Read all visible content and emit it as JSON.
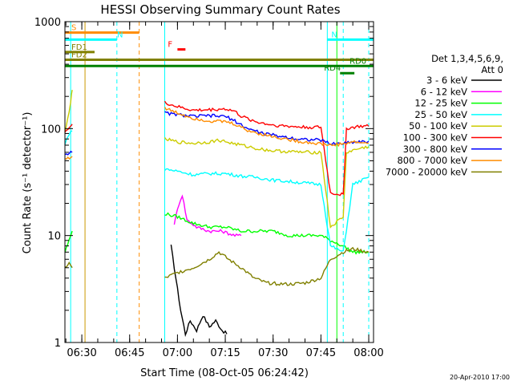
{
  "chart_data": {
    "type": "line",
    "title": "HESSI Observing Summary Count Rates",
    "xlabel": "Start Time (08-Oct-05 06:24:42)",
    "ylabel": "Count Rate (s⁻¹ detector⁻¹)",
    "yscale": "log",
    "ylim": [
      1,
      1000
    ],
    "xlim": [
      "06:24:42",
      "08:01:30"
    ],
    "x_ticks": [
      "06:30",
      "06:45",
      "07:00",
      "07:15",
      "07:30",
      "07:45",
      "08:00"
    ],
    "y_ticks": [
      "1",
      "10",
      "100",
      "1000"
    ],
    "legend_header": [
      "Det 1,3,4,5,6,9,",
      "Att 0"
    ],
    "grid": false,
    "legend_position": "right",
    "series": [
      {
        "name": "3 - 6 keV",
        "color": "#000000",
        "points": [
          [
            "06:58:00",
            8
          ],
          [
            "06:59:30",
            4
          ],
          [
            "07:01:00",
            2
          ],
          [
            "07:02:30",
            1.2
          ],
          [
            "07:04:00",
            1.6
          ],
          [
            "07:06:00",
            1.3
          ],
          [
            "07:08:00",
            1.8
          ],
          [
            "07:10:00",
            1.4
          ],
          [
            "07:12:00",
            1.6
          ],
          [
            "07:14:00",
            1.3
          ],
          [
            "07:15:30",
            1.2
          ]
        ]
      },
      {
        "name": "6 - 12 keV",
        "color": "#ff00ff",
        "points": [
          [
            "06:59:00",
            13
          ],
          [
            "07:00:30",
            20
          ],
          [
            "07:01:30",
            24
          ],
          [
            "07:03:00",
            14
          ],
          [
            "07:06:00",
            12
          ],
          [
            "07:10:00",
            11
          ],
          [
            "07:14:00",
            11
          ],
          [
            "07:18:00",
            10
          ],
          [
            "07:20:00",
            10
          ]
        ]
      },
      {
        "name": "12 - 25 keV",
        "color": "#00ff00",
        "points": [
          [
            "06:24:42",
            7
          ],
          [
            "06:26:00",
            9
          ],
          [
            "06:27:00",
            11
          ],
          [
            "06:56:00",
            16
          ],
          [
            "07:00:00",
            15
          ],
          [
            "07:05:00",
            13
          ],
          [
            "07:10:00",
            12
          ],
          [
            "07:15:00",
            12
          ],
          [
            "07:20:00",
            11
          ],
          [
            "07:25:00",
            11
          ],
          [
            "07:30:00",
            11
          ],
          [
            "07:35:00",
            10
          ],
          [
            "07:40:00",
            10
          ],
          [
            "07:45:00",
            10
          ],
          [
            "07:48:00",
            9
          ],
          [
            "07:52:00",
            8
          ],
          [
            "07:55:00",
            7
          ],
          [
            "07:57:00",
            7
          ],
          [
            "08:00:00",
            7
          ]
        ]
      },
      {
        "name": "25 - 50 keV",
        "color": "#00ffff",
        "points": [
          [
            "06:24:42",
            70
          ],
          [
            "06:25:30",
            85
          ],
          [
            "06:27:00",
            95
          ],
          [
            "06:56:00",
            42
          ],
          [
            "07:00:00",
            40
          ],
          [
            "07:05:00",
            37
          ],
          [
            "07:10:00",
            38
          ],
          [
            "07:15:00",
            38
          ],
          [
            "07:20:00",
            36
          ],
          [
            "07:25:00",
            35
          ],
          [
            "07:30:00",
            33
          ],
          [
            "07:35:00",
            32
          ],
          [
            "07:40:00",
            31
          ],
          [
            "07:45:00",
            30
          ],
          [
            "07:48:00",
            8
          ],
          [
            "07:52:00",
            7
          ],
          [
            "07:55:00",
            30
          ],
          [
            "07:58:00",
            33
          ],
          [
            "08:00:00",
            35
          ]
        ]
      },
      {
        "name": "50 - 100 keV",
        "color": "#cccc00",
        "points": [
          [
            "06:24:42",
            90
          ],
          [
            "06:25:30",
            120
          ],
          [
            "06:26:30",
            180
          ],
          [
            "06:27:00",
            230
          ],
          [
            "06:56:00",
            80
          ],
          [
            "07:00:00",
            75
          ],
          [
            "07:05:00",
            73
          ],
          [
            "07:10:00",
            75
          ],
          [
            "07:13:00",
            78
          ],
          [
            "07:18:00",
            72
          ],
          [
            "07:22:00",
            68
          ],
          [
            "07:25:00",
            65
          ],
          [
            "07:30:00",
            62
          ],
          [
            "07:35:00",
            61
          ],
          [
            "07:40:00",
            60
          ],
          [
            "07:45:00",
            60
          ],
          [
            "07:48:00",
            12
          ],
          [
            "07:52:00",
            15
          ],
          [
            "07:53:00",
            60
          ],
          [
            "07:57:00",
            65
          ],
          [
            "08:00:00",
            68
          ]
        ]
      },
      {
        "name": "100 - 300 keV",
        "color": "#ff0000",
        "points": [
          [
            "06:24:42",
            95
          ],
          [
            "06:26:00",
            100
          ],
          [
            "06:27:00",
            110
          ],
          [
            "06:56:00",
            175
          ],
          [
            "07:00:00",
            160
          ],
          [
            "07:05:00",
            148
          ],
          [
            "07:10:00",
            150
          ],
          [
            "07:15:00",
            153
          ],
          [
            "07:18:00",
            145
          ],
          [
            "07:20:00",
            130
          ],
          [
            "07:25:00",
            115
          ],
          [
            "07:30:00",
            108
          ],
          [
            "07:35:00",
            105
          ],
          [
            "07:40:00",
            103
          ],
          [
            "07:45:00",
            103
          ],
          [
            "07:48:00",
            25
          ],
          [
            "07:52:00",
            24
          ],
          [
            "07:53:00",
            100
          ],
          [
            "07:57:00",
            105
          ],
          [
            "08:00:00",
            105
          ]
        ]
      },
      {
        "name": "300 - 800 keV",
        "color": "#0000ff",
        "points": [
          [
            "06:24:42",
            58
          ],
          [
            "06:27:00",
            60
          ],
          [
            "06:56:00",
            140
          ],
          [
            "07:00:00",
            135
          ],
          [
            "07:05:00",
            130
          ],
          [
            "07:10:00",
            132
          ],
          [
            "07:15:00",
            130
          ],
          [
            "07:18:00",
            118
          ],
          [
            "07:22:00",
            100
          ],
          [
            "07:27:00",
            90
          ],
          [
            "07:32:00",
            85
          ],
          [
            "07:38:00",
            80
          ],
          [
            "07:45:00",
            78
          ],
          [
            "07:48:00",
            72
          ],
          [
            "07:52:00",
            73
          ],
          [
            "07:55:00",
            75
          ],
          [
            "08:00:00",
            76
          ]
        ]
      },
      {
        "name": "800 - 7000 keV",
        "color": "#ff8c00",
        "points": [
          [
            "06:24:42",
            52
          ],
          [
            "06:27:00",
            55
          ],
          [
            "06:56:00",
            155
          ],
          [
            "07:00:00",
            140
          ],
          [
            "07:05:00",
            125
          ],
          [
            "07:10:00",
            118
          ],
          [
            "07:15:00",
            116
          ],
          [
            "07:18:00",
            110
          ],
          [
            "07:22:00",
            96
          ],
          [
            "07:27:00",
            88
          ],
          [
            "07:32:00",
            82
          ],
          [
            "07:38:00",
            76
          ],
          [
            "07:45:00",
            72
          ],
          [
            "07:48:00",
            70
          ],
          [
            "07:52:00",
            72
          ],
          [
            "07:55:00",
            75
          ],
          [
            "08:00:00",
            73
          ]
        ]
      },
      {
        "name": "7000 - 20000 keV",
        "color": "#808000",
        "points": [
          [
            "06:24:42",
            5
          ],
          [
            "06:26:00",
            5.5
          ],
          [
            "06:27:00",
            5
          ],
          [
            "06:56:00",
            4
          ],
          [
            "07:00:00",
            4.5
          ],
          [
            "07:05:00",
            5
          ],
          [
            "07:10:00",
            6
          ],
          [
            "07:13:00",
            7
          ],
          [
            "07:16:00",
            6
          ],
          [
            "07:20:00",
            5
          ],
          [
            "07:24:00",
            4
          ],
          [
            "07:28:00",
            3.6
          ],
          [
            "07:35:00",
            3.5
          ],
          [
            "07:40:00",
            3.6
          ],
          [
            "07:45:00",
            4
          ],
          [
            "07:48:00",
            6
          ],
          [
            "07:52:00",
            7
          ],
          [
            "07:55:00",
            7.5
          ],
          [
            "08:00:00",
            7
          ]
        ]
      }
    ],
    "annotations": {
      "bars": [
        {
          "label": "S",
          "color": "#ff8c00",
          "start": "06:24:42",
          "end": "06:48:00",
          "level": 790
        },
        {
          "label": "N",
          "color": "#00ffff",
          "start": "06:24:42",
          "end": "06:41:00",
          "level": 680
        },
        {
          "label": "N",
          "color": "#00ffff",
          "start": "07:47:00",
          "end": "08:01:30",
          "level": 680
        },
        {
          "label": "F",
          "color": "#ff0000",
          "start": "07:00:00",
          "end": "07:02:30",
          "level": 550
        },
        {
          "label": "FD1",
          "color": "#808000",
          "start": "06:24:42",
          "end": "06:34:00",
          "level": 520
        },
        {
          "label": "FD2",
          "color": "#808000",
          "start": "06:24:42",
          "end": "08:01:30",
          "level": 440
        },
        {
          "label": "RD0",
          "color": "#008000",
          "start": "06:24:42",
          "end": "08:01:30",
          "level": 385
        },
        {
          "label": "RD4",
          "color": "#008000",
          "start": "07:51:00",
          "end": "07:55:30",
          "level": 330
        }
      ],
      "vlines": [
        {
          "time": "06:26:30",
          "color": "#00ffff",
          "style": "solid"
        },
        {
          "time": "06:31:00",
          "color": "#cc9900",
          "style": "solid"
        },
        {
          "time": "06:41:00",
          "color": "#00ffff",
          "style": "dashed"
        },
        {
          "time": "06:48:00",
          "color": "#ff8c00",
          "style": "dashed"
        },
        {
          "time": "06:56:00",
          "color": "#00ffff",
          "style": "solid"
        },
        {
          "time": "07:47:00",
          "color": "#00ffff",
          "style": "solid"
        },
        {
          "time": "07:50:00",
          "color": "#00ff00",
          "style": "solid"
        },
        {
          "time": "07:52:00",
          "color": "#00ffff",
          "style": "dashed"
        },
        {
          "time": "08:00:00",
          "color": "#00ffff",
          "style": "dashed"
        }
      ]
    },
    "footer_date": "20-Apr-2010 17:00"
  }
}
